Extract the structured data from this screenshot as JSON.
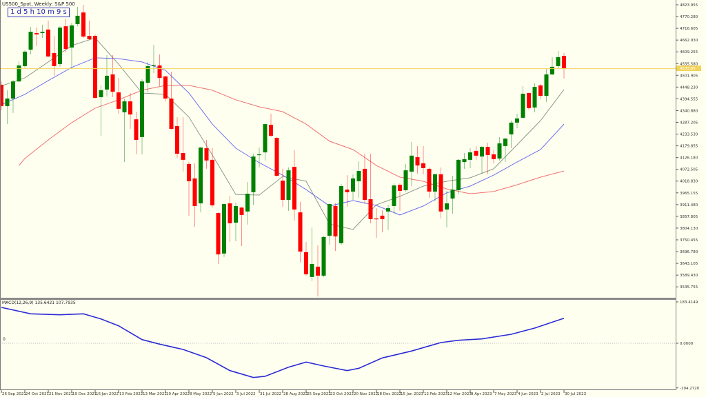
{
  "header": {
    "title": "US500_Spot, Weekly:  S&P 500",
    "timer": "1 d 5 h 10 m 9 s"
  },
  "colors": {
    "background": "#fffff0",
    "bull": "#008000",
    "bear": "#ff0000",
    "ma_fast": "#8c9a8c",
    "ma_mid": "#6f6ff0",
    "ma_slow": "#f07070",
    "macd": "#2b2bd6",
    "price_line": "#f2d45c"
  },
  "chart_data": [
    {
      "type": "candlestick",
      "title": "US500_Spot, Weekly:  S&P 500",
      "period": "Weekly",
      "start_date": "2021-09-26",
      "ylim": [
        3486,
        4846
      ],
      "grid": false,
      "current_price_label": "4533.85",
      "y_ticks": [
        "4823.955",
        "4770.280",
        "4716.605",
        "4662.930",
        "4609.255",
        "4555.580",
        "4501.905",
        "4448.230",
        "4394.555",
        "4340.880",
        "4287.205",
        "4233.530",
        "4179.855",
        "4126.180",
        "4072.505",
        "4018.830",
        "3965.155",
        "3911.480",
        "3857.805",
        "3804.130",
        "3750.455",
        "3696.780",
        "3643.105",
        "3589.430",
        "3535.755"
      ],
      "x_ticks": [
        {
          "date": "2021-09-26",
          "label": "26 Sep 2021"
        },
        {
          "date": "2021-10-24",
          "label": "24 Oct 2021"
        },
        {
          "date": "2021-11-21",
          "label": "21 Nov 2021"
        },
        {
          "date": "2021-12-19",
          "label": "19 Dec 2021"
        },
        {
          "date": "2022-01-16",
          "label": "16 Jan 2022"
        },
        {
          "date": "2022-02-13",
          "label": "13 Feb 2022"
        },
        {
          "date": "2022-03-13",
          "label": "13 Mar 2022"
        },
        {
          "date": "2022-04-10",
          "label": "10 Apr 2022"
        },
        {
          "date": "2022-05-08",
          "label": "8 May 2022"
        },
        {
          "date": "2022-06-05",
          "label": "5 Jun 2022"
        },
        {
          "date": "2022-07-03",
          "label": "3 Jul 2022"
        },
        {
          "date": "2022-07-31",
          "label": "31 Jul 2022"
        },
        {
          "date": "2022-08-28",
          "label": "28 Aug 2022"
        },
        {
          "date": "2022-09-25",
          "label": "25 Sep 2022"
        },
        {
          "date": "2022-10-23",
          "label": "23 Oct 2022"
        },
        {
          "date": "2022-11-20",
          "label": "20 Nov 2022"
        },
        {
          "date": "2022-12-18",
          "label": "18 Dec 2022"
        },
        {
          "date": "2023-01-15",
          "label": "15 Jan 2023"
        },
        {
          "date": "2023-02-12",
          "label": "12 Feb 2023"
        },
        {
          "date": "2023-03-12",
          "label": "12 Mar 2023"
        },
        {
          "date": "2023-04-09",
          "label": "9 Apr 2023"
        },
        {
          "date": "2023-05-07",
          "label": "7 May 2023"
        },
        {
          "date": "2023-06-04",
          "label": "4 Jun 2023"
        },
        {
          "date": "2023-07-02",
          "label": "2 Jul 2023"
        },
        {
          "date": "2023-07-30",
          "label": "30 Jul 2023"
        }
      ],
      "candles_ohlc": [
        [
          4459,
          4474,
          4342,
          4361
        ],
        [
          4361,
          4434,
          4279,
          4396
        ],
        [
          4396,
          4481,
          4330,
          4474
        ],
        [
          4474,
          4566,
          4470,
          4547
        ],
        [
          4544,
          4616,
          4537,
          4610
        ],
        [
          4619,
          4723,
          4597,
          4701
        ],
        [
          4695,
          4720,
          4635,
          4689
        ],
        [
          4695,
          4733,
          4673,
          4701
        ],
        [
          4711,
          4752,
          4585,
          4588
        ],
        [
          4604,
          4682,
          4500,
          4544
        ],
        [
          4553,
          4726,
          4541,
          4720
        ],
        [
          4726,
          4758,
          4607,
          4622
        ],
        [
          4629,
          4742,
          4534,
          4730
        ],
        [
          4736,
          4815,
          4726,
          4774
        ],
        [
          4789,
          4824,
          4673,
          4679
        ],
        [
          4682,
          4752,
          4663,
          4667
        ],
        [
          4682,
          4689,
          4396,
          4399
        ],
        [
          4402,
          4456,
          4226,
          4434
        ],
        [
          4437,
          4594,
          4405,
          4500
        ],
        [
          4506,
          4594,
          4402,
          4427
        ],
        [
          4424,
          4490,
          4327,
          4349
        ],
        [
          4333,
          4396,
          4106,
          4383
        ],
        [
          4383,
          4421,
          4257,
          4323
        ],
        [
          4301,
          4336,
          4141,
          4207
        ],
        [
          4220,
          4484,
          4141,
          4474
        ],
        [
          4468,
          4563,
          4424,
          4544
        ],
        [
          4547,
          4641,
          4512,
          4550
        ],
        [
          4547,
          4597,
          4453,
          4490
        ],
        [
          4497,
          4500,
          4383,
          4396
        ],
        [
          4396,
          4519,
          4254,
          4257
        ],
        [
          4270,
          4311,
          4125,
          4144
        ],
        [
          4147,
          4311,
          4062,
          4116
        ],
        [
          4097,
          4106,
          3861,
          4018
        ],
        [
          4031,
          4100,
          3810,
          3905
        ],
        [
          3917,
          4175,
          3876,
          4172
        ],
        [
          4169,
          4207,
          4075,
          4113
        ],
        [
          4116,
          4169,
          3898,
          3908
        ],
        [
          3873,
          3876,
          3640,
          3684
        ],
        [
          3688,
          3917,
          3672,
          3914
        ],
        [
          3917,
          3952,
          3741,
          3826
        ],
        [
          3829,
          3921,
          3744,
          3905
        ],
        [
          3898,
          3900,
          3722,
          3864
        ],
        [
          3880,
          4015,
          3820,
          3961
        ],
        [
          3968,
          4144,
          3911,
          4131
        ],
        [
          4138,
          4172,
          4081,
          4141
        ],
        [
          4150,
          4282,
          4113,
          4279
        ],
        [
          4276,
          4327,
          4220,
          4226
        ],
        [
          4216,
          4220,
          4040,
          4043
        ],
        [
          4021,
          4075,
          3902,
          3933
        ],
        [
          3933,
          4081,
          3883,
          4068
        ],
        [
          4084,
          4160,
          3839,
          3889
        ],
        [
          3876,
          3924,
          3647,
          3697
        ],
        [
          3694,
          3741,
          3587,
          3593
        ],
        [
          3581,
          3807,
          3562,
          3640
        ],
        [
          3628,
          3725,
          3492,
          3587
        ],
        [
          3587,
          3769,
          3580,
          3763
        ],
        [
          3769,
          3917,
          3728,
          3914
        ],
        [
          3905,
          3917,
          3700,
          3766
        ],
        [
          3735,
          4005,
          3728,
          3996
        ],
        [
          3980,
          4046,
          3902,
          3968
        ],
        [
          3971,
          4050,
          3933,
          4031
        ],
        [
          4018,
          4109,
          3943,
          4065
        ],
        [
          4075,
          4144,
          3914,
          3933
        ],
        [
          3936,
          4144,
          3826,
          3845
        ],
        [
          3848,
          3895,
          3760,
          3845
        ],
        [
          3861,
          3886,
          3785,
          3845
        ],
        [
          3880,
          3911,
          3795,
          3895
        ],
        [
          3905,
          4009,
          3870,
          3999
        ],
        [
          4002,
          4009,
          3883,
          3974
        ],
        [
          3977,
          4097,
          3971,
          4068
        ],
        [
          4062,
          4198,
          3996,
          4135
        ],
        [
          4128,
          4179,
          4053,
          4090
        ],
        [
          4100,
          4179,
          4050,
          4078
        ],
        [
          4075,
          4081,
          3943,
          3971
        ],
        [
          3971,
          4053,
          3927,
          4050
        ],
        [
          4050,
          4081,
          3848,
          3880
        ],
        [
          3889,
          3974,
          3807,
          3917
        ],
        [
          3939,
          4043,
          3870,
          3980
        ],
        [
          3977,
          4119,
          3958,
          4116
        ],
        [
          4106,
          4147,
          4075,
          4119
        ],
        [
          4116,
          4169,
          4078,
          4150
        ],
        [
          4157,
          4179,
          4116,
          4135
        ],
        [
          4131,
          4178,
          4053,
          4175
        ],
        [
          4175,
          4194,
          4050,
          4138
        ],
        [
          4141,
          4163,
          4100,
          4119
        ],
        [
          4122,
          4220,
          4113,
          4191
        ],
        [
          4179,
          4216,
          4106,
          4213
        ],
        [
          4232,
          4295,
          4169,
          4286
        ],
        [
          4286,
          4327,
          4260,
          4305
        ],
        [
          4308,
          4453,
          4305,
          4418
        ],
        [
          4421,
          4424,
          4345,
          4352
        ],
        [
          4355,
          4465,
          4333,
          4449
        ],
        [
          4456,
          4462,
          4393,
          4408
        ],
        [
          4408,
          4534,
          4380,
          4506
        ],
        [
          4506,
          4585,
          4503,
          4541
        ],
        [
          4544,
          4613,
          4531,
          4585
        ],
        [
          4591,
          4604,
          4487,
          4534
        ]
      ],
      "moving_averages": [
        {
          "color_key": "ma_fast",
          "points": [
            [
              "2021-09-26",
              4453
            ],
            [
              "2021-10-24",
              4490
            ],
            [
              "2021-11-21",
              4563
            ],
            [
              "2021-12-19",
              4638
            ],
            [
              "2022-01-16",
              4673
            ],
            [
              "2022-02-13",
              4553
            ],
            [
              "2022-03-13",
              4421
            ],
            [
              "2022-04-10",
              4415
            ],
            [
              "2022-05-08",
              4311
            ],
            [
              "2022-06-05",
              4138
            ],
            [
              "2022-07-03",
              3958
            ],
            [
              "2022-07-31",
              3955
            ],
            [
              "2022-08-28",
              4040
            ],
            [
              "2022-09-25",
              4018
            ],
            [
              "2022-10-23",
              3823
            ],
            [
              "2022-11-20",
              3798
            ],
            [
              "2022-12-18",
              3911
            ],
            [
              "2023-01-15",
              3949
            ],
            [
              "2023-02-12",
              3996
            ],
            [
              "2023-03-12",
              4018
            ],
            [
              "2023-04-09",
              4034
            ],
            [
              "2023-05-07",
              4075
            ],
            [
              "2023-06-04",
              4185
            ],
            [
              "2023-07-02",
              4295
            ],
            [
              "2023-07-30",
              4437
            ]
          ]
        },
        {
          "color_key": "ma_mid",
          "points": [
            [
              "2021-09-26",
              4368
            ],
            [
              "2021-10-24",
              4415
            ],
            [
              "2021-11-21",
              4478
            ],
            [
              "2021-12-19",
              4538
            ],
            [
              "2022-01-16",
              4582
            ],
            [
              "2022-02-13",
              4578
            ],
            [
              "2022-03-13",
              4563
            ],
            [
              "2022-04-10",
              4525
            ],
            [
              "2022-05-08",
              4421
            ],
            [
              "2022-06-05",
              4279
            ],
            [
              "2022-07-03",
              4169
            ],
            [
              "2022-07-31",
              4103
            ],
            [
              "2022-08-28",
              4046
            ],
            [
              "2022-09-25",
              3980
            ],
            [
              "2022-10-23",
              3905
            ],
            [
              "2022-11-20",
              3930
            ],
            [
              "2022-12-18",
              3908
            ],
            [
              "2023-01-15",
              3864
            ],
            [
              "2023-02-12",
              3905
            ],
            [
              "2023-03-12",
              3965
            ],
            [
              "2023-04-09",
              3996
            ],
            [
              "2023-05-07",
              4046
            ],
            [
              "2023-06-04",
              4106
            ],
            [
              "2023-07-02",
              4163
            ],
            [
              "2023-07-30",
              4279
            ]
          ]
        },
        {
          "color_key": "ma_slow",
          "points": [
            [
              "2021-10-17",
              4090
            ],
            [
              "2021-10-24",
              4122
            ],
            [
              "2021-11-21",
              4207
            ],
            [
              "2021-12-19",
              4286
            ],
            [
              "2022-01-16",
              4352
            ],
            [
              "2022-02-13",
              4390
            ],
            [
              "2022-03-13",
              4434
            ],
            [
              "2022-04-10",
              4456
            ],
            [
              "2022-05-08",
              4456
            ],
            [
              "2022-06-05",
              4434
            ],
            [
              "2022-07-03",
              4390
            ],
            [
              "2022-07-31",
              4358
            ],
            [
              "2022-08-28",
              4336
            ],
            [
              "2022-09-25",
              4279
            ],
            [
              "2022-10-23",
              4201
            ],
            [
              "2022-11-20",
              4163
            ],
            [
              "2022-12-18",
              4090
            ],
            [
              "2023-01-15",
              4037
            ],
            [
              "2023-02-12",
              4018
            ],
            [
              "2023-03-12",
              3983
            ],
            [
              "2023-04-09",
              3961
            ],
            [
              "2023-05-07",
              3971
            ],
            [
              "2023-06-04",
              4002
            ],
            [
              "2023-07-02",
              4037
            ],
            [
              "2023-07-30",
              4065
            ]
          ]
        }
      ]
    },
    {
      "type": "line",
      "title": "MACD(12,26,9) 135.6421 107.7935",
      "ylim": [
        -204,
        189
      ],
      "y_ticks": [
        "183.4149",
        "0.0000",
        "-194.2720"
      ],
      "y_ticks_values": [
        183.4149,
        0,
        -194.272
      ],
      "zero_left_label": "0",
      "points": [
        [
          "2021-09-26",
          156
        ],
        [
          "2021-10-31",
          128
        ],
        [
          "2021-12-05",
          124
        ],
        [
          "2022-01-02",
          128
        ],
        [
          "2022-01-23",
          106
        ],
        [
          "2022-02-13",
          76
        ],
        [
          "2022-03-13",
          16
        ],
        [
          "2022-04-03",
          -4
        ],
        [
          "2022-05-01",
          -27
        ],
        [
          "2022-05-29",
          -63
        ],
        [
          "2022-06-26",
          -119
        ],
        [
          "2022-07-24",
          -149
        ],
        [
          "2022-08-07",
          -144
        ],
        [
          "2022-09-04",
          -104
        ],
        [
          "2022-09-25",
          -82
        ],
        [
          "2022-10-16",
          -99
        ],
        [
          "2022-11-13",
          -119
        ],
        [
          "2022-11-27",
          -109
        ],
        [
          "2022-12-25",
          -64
        ],
        [
          "2023-01-29",
          -34
        ],
        [
          "2023-03-05",
          3
        ],
        [
          "2023-03-26",
          13
        ],
        [
          "2023-04-23",
          19
        ],
        [
          "2023-05-28",
          39
        ],
        [
          "2023-06-25",
          66
        ],
        [
          "2023-07-30",
          109
        ]
      ]
    }
  ]
}
